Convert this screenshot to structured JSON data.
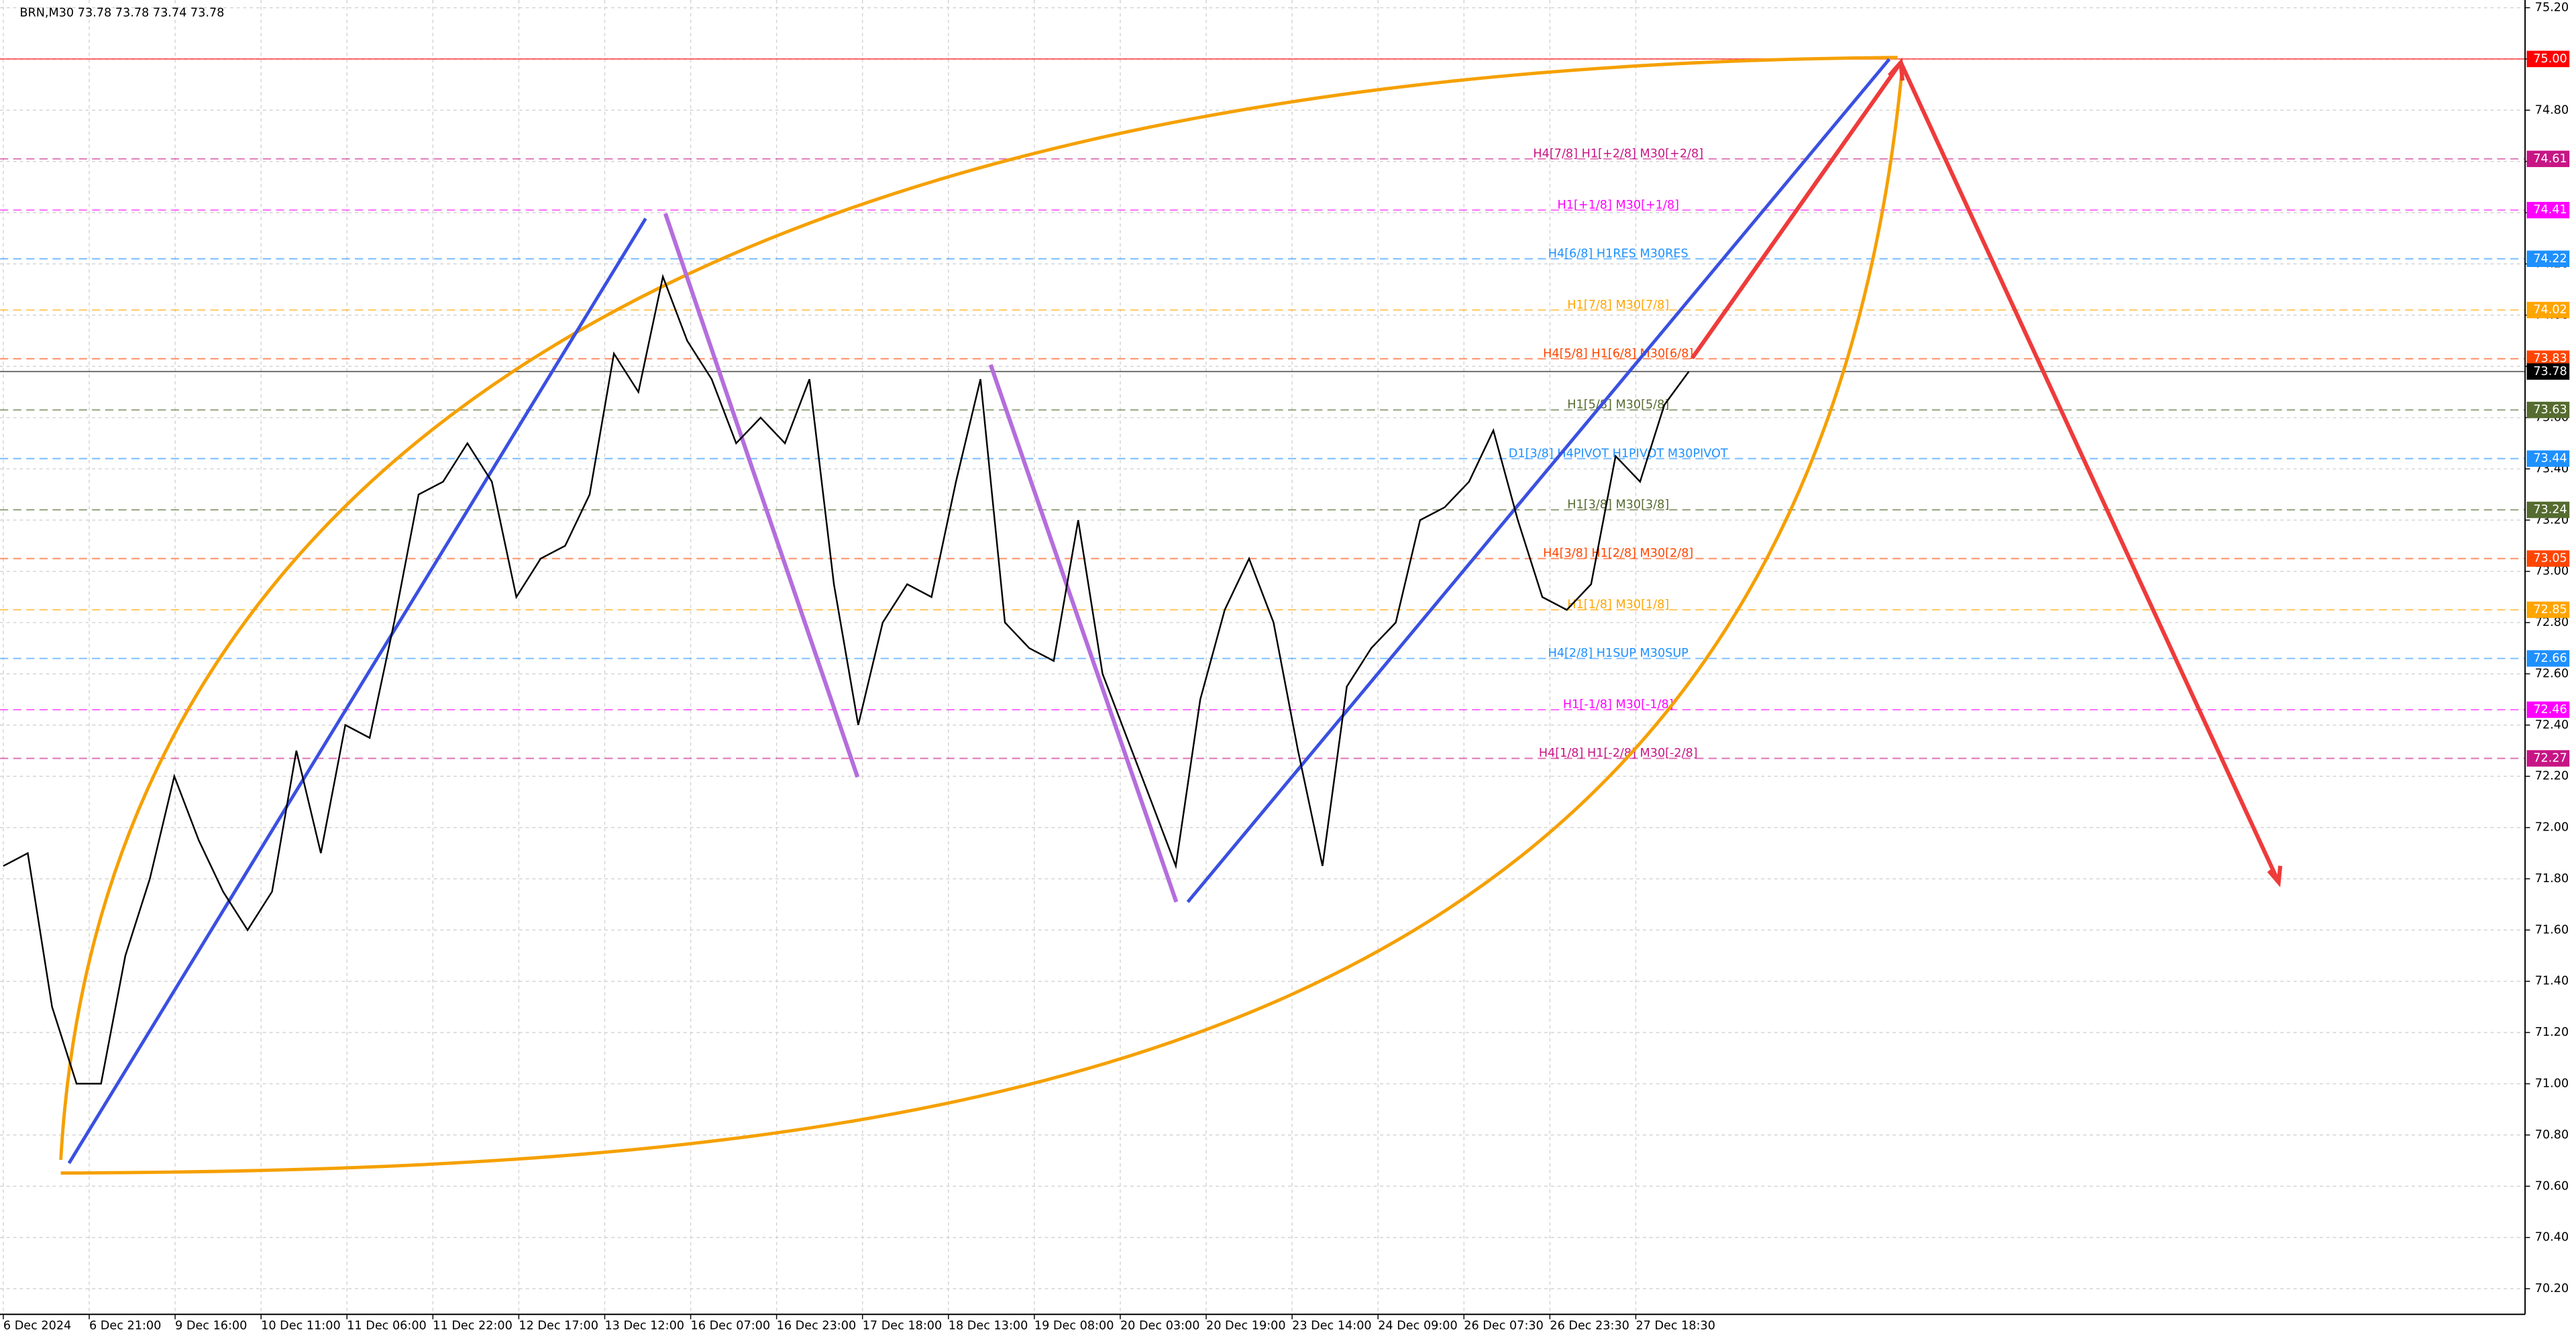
{
  "chart_data": {
    "type": "line",
    "title": "BRN,M30  73.78 73.78 73.74 73.78",
    "x_labels": [
      "6 Dec 2024",
      "6 Dec 21:00",
      "9 Dec 16:00",
      "10 Dec 11:00",
      "11 Dec 06:00",
      "11 Dec 22:00",
      "12 Dec 17:00",
      "13 Dec 12:00",
      "16 Dec 07:00",
      "16 Dec 23:00",
      "17 Dec 18:00",
      "18 Dec 13:00",
      "19 Dec 08:00",
      "20 Dec 03:00",
      "20 Dec 19:00",
      "23 Dec 14:00",
      "24 Dec 09:00",
      "26 Dec 07:30",
      "26 Dec 23:30",
      "27 Dec 18:30"
    ],
    "series": [
      {
        "name": "BRN",
        "color": "#000000",
        "values": [
          71.85,
          71.9,
          71.3,
          71.0,
          71.0,
          71.5,
          71.8,
          72.2,
          71.95,
          71.75,
          71.6,
          71.75,
          72.3,
          71.9,
          72.4,
          72.35,
          72.8,
          73.3,
          73.35,
          73.5,
          73.35,
          72.9,
          73.05,
          73.1,
          73.3,
          73.85,
          73.7,
          74.15,
          73.9,
          73.75,
          73.5,
          73.6,
          73.5,
          73.75,
          72.95,
          72.4,
          72.8,
          72.95,
          72.9,
          73.35,
          73.75,
          72.8,
          72.7,
          72.65,
          73.2,
          72.6,
          72.35,
          72.1,
          71.85,
          72.5,
          72.85,
          73.05,
          72.8,
          72.3,
          71.85,
          72.55,
          72.7,
          72.8,
          73.2,
          73.25,
          73.35,
          73.55,
          73.2,
          72.9,
          72.85,
          72.95,
          73.45,
          73.35,
          73.65,
          73.78
        ]
      }
    ],
    "ylim": [
      70.1,
      75.23
    ],
    "yticks": [
      {
        "value": 70.2,
        "label": "70.20"
      },
      {
        "value": 70.4,
        "label": "70.40"
      },
      {
        "value": 70.6,
        "label": "70.60"
      },
      {
        "value": 70.8,
        "label": "70.80"
      },
      {
        "value": 71.0,
        "label": "71.00"
      },
      {
        "value": 71.2,
        "label": "71.20"
      },
      {
        "value": 71.4,
        "label": "71.40"
      },
      {
        "value": 71.6,
        "label": "71.60"
      },
      {
        "value": 71.8,
        "label": "71.80"
      },
      {
        "value": 72.0,
        "label": "72.00"
      },
      {
        "value": 72.2,
        "label": "72.20"
      },
      {
        "value": 72.4,
        "label": "72.40"
      },
      {
        "value": 72.6,
        "label": "72.60"
      },
      {
        "value": 72.8,
        "label": "72.80"
      },
      {
        "value": 73.0,
        "label": "73.00"
      },
      {
        "value": 73.2,
        "label": "73.20"
      },
      {
        "value": 73.4,
        "label": "73.40"
      },
      {
        "value": 73.6,
        "label": "73.60"
      },
      {
        "value": 73.8,
        "label": "73.80"
      },
      {
        "value": 74.0,
        "label": "74.00"
      },
      {
        "value": 74.2,
        "label": "74.20"
      },
      {
        "value": 74.4,
        "label": "74.40"
      },
      {
        "value": 74.6,
        "label": "74.60"
      },
      {
        "value": 74.8,
        "label": "74.80"
      },
      {
        "value": 75.0,
        "label": "75.00"
      },
      {
        "value": 75.2,
        "label": "75.20"
      }
    ],
    "grid": true,
    "levels": [
      {
        "value": 75.0,
        "label": "75.00",
        "color": "#ff0000"
      },
      {
        "value": 74.61,
        "label": "74.61",
        "color": "#c71585",
        "text": "H4[7/8] H1[+2/8] M30[+2/8]"
      },
      {
        "value": 74.41,
        "label": "74.41",
        "color": "#ff00ff",
        "text": "H1[+1/8] M30[+1/8]"
      },
      {
        "value": 74.22,
        "label": "74.22",
        "color": "#1e90ff",
        "text": "H4[6/8] H1RES M30RES"
      },
      {
        "value": 74.02,
        "label": "74.02",
        "color": "#ffa500",
        "text": "H1[7/8] M30[7/8]"
      },
      {
        "value": 73.83,
        "label": "73.83",
        "color": "#ff4500",
        "text": "H4[5/8] H1[6/8] M30[6/8]"
      },
      {
        "value": 73.78,
        "label": "73.78",
        "color": "#000000"
      },
      {
        "value": 73.63,
        "label": "73.63",
        "color": "#556b2f",
        "text": "H1[5/8] M30[5/8]"
      },
      {
        "value": 73.44,
        "label": "73.44",
        "color": "#1e90ff",
        "text": "D1[3/8] H4PIVOT H1PIVOT M30PIVOT"
      },
      {
        "value": 73.24,
        "label": "73.24",
        "color": "#556b2f",
        "text": "H1[3/8] M30[3/8]"
      },
      {
        "value": 73.05,
        "label": "73.05",
        "color": "#ff4500",
        "text": "H4[3/8] H1[2/8] M30[2/8]"
      },
      {
        "value": 72.85,
        "label": "72.85",
        "color": "#ffa500",
        "text": "H1[1/8] M30[1/8]"
      },
      {
        "value": 72.66,
        "label": "72.66",
        "color": "#1e90ff",
        "text": "H4[2/8] H1SUP M30SUP"
      },
      {
        "value": 72.46,
        "label": "72.46",
        "color": "#ff00ff",
        "text": "H1[-1/8] M30[-1/8]"
      },
      {
        "value": 72.27,
        "label": "72.27",
        "color": "#c71585",
        "text": "H4[1/8] H1[-2/8] M30[-2/8]"
      }
    ]
  }
}
